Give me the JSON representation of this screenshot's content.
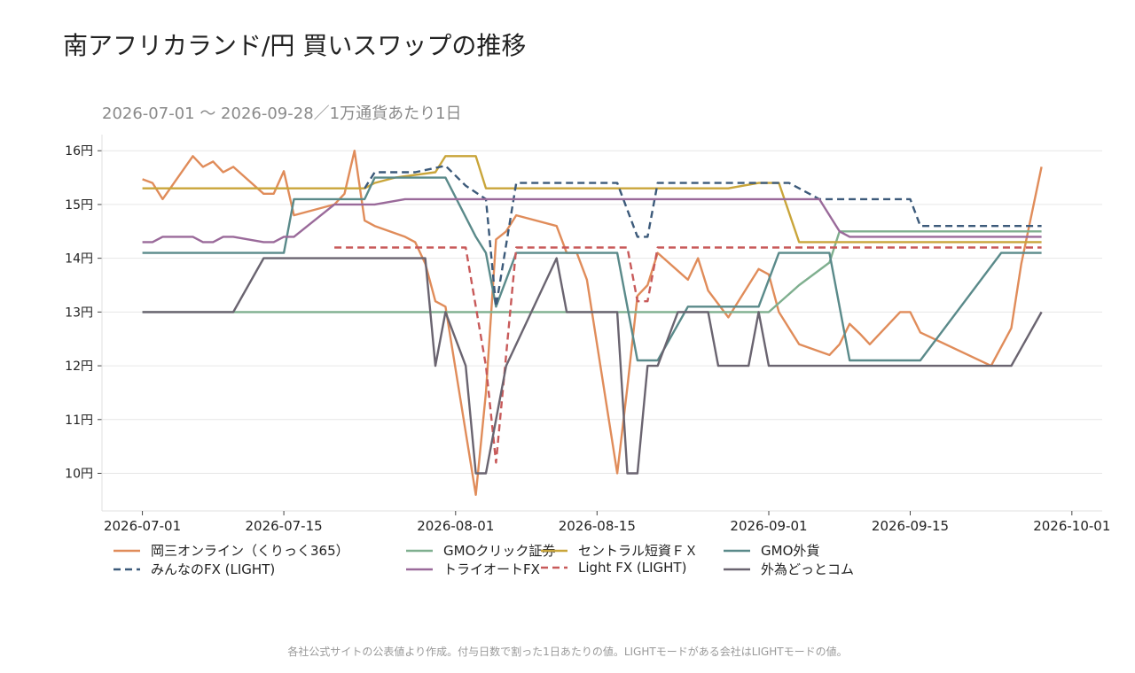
{
  "title": "南アフリカランド/円 買いスワップの推移",
  "subtitle": "2026-07-01 〜 2026-09-28／1万通貨あたり1日",
  "footnote": "各社公式サイトの公表値より作成。付与日数で割った1日あたりの値。LIGHTモードがある会社はLIGHTモードの値。",
  "chart_data": {
    "type": "line",
    "x_ticks": [
      "2026-07-01",
      "2026-07-15",
      "2026-08-01",
      "2026-08-15",
      "2026-09-01",
      "2026-09-15",
      "2026-10-01"
    ],
    "y_ticks": [
      "10円",
      "11円",
      "12円",
      "13円",
      "14円",
      "15円",
      "16円"
    ],
    "ylim": [
      9.3,
      16.3
    ],
    "xlim": [
      "2026-06-27",
      "2026-10-04"
    ],
    "grid": true,
    "legend_position": "bottom",
    "series": [
      {
        "name": "岡三オンライン（くりっく365）",
        "color": "#E08C5A",
        "dash": false,
        "points": [
          [
            "2026-07-01",
            15.47
          ],
          [
            "2026-07-02",
            15.4
          ],
          [
            "2026-07-03",
            15.1
          ],
          [
            "2026-07-06",
            15.9
          ],
          [
            "2026-07-07",
            15.7
          ],
          [
            "2026-07-08",
            15.8
          ],
          [
            "2026-07-09",
            15.6
          ],
          [
            "2026-07-10",
            15.7
          ],
          [
            "2026-07-13",
            15.2
          ],
          [
            "2026-07-14",
            15.2
          ],
          [
            "2026-07-15",
            15.62
          ],
          [
            "2026-07-16",
            14.8
          ],
          [
            "2026-07-20",
            15.0
          ],
          [
            "2026-07-21",
            15.2
          ],
          [
            "2026-07-22",
            16.0
          ],
          [
            "2026-07-23",
            14.7
          ],
          [
            "2026-07-24",
            14.6
          ],
          [
            "2026-07-27",
            14.4
          ],
          [
            "2026-07-28",
            14.3
          ],
          [
            "2026-07-29",
            13.9
          ],
          [
            "2026-07-30",
            13.2
          ],
          [
            "2026-07-31",
            13.1
          ],
          [
            "2026-08-03",
            9.6
          ],
          [
            "2026-08-04",
            11.5
          ],
          [
            "2026-08-05",
            14.35
          ],
          [
            "2026-08-06",
            14.5
          ],
          [
            "2026-08-07",
            14.8
          ],
          [
            "2026-08-11",
            14.6
          ],
          [
            "2026-08-12",
            14.1
          ],
          [
            "2026-08-13",
            14.1
          ],
          [
            "2026-08-14",
            13.6
          ],
          [
            "2026-08-17",
            10.0
          ],
          [
            "2026-08-18",
            11.6
          ],
          [
            "2026-08-19",
            13.3
          ],
          [
            "2026-08-20",
            13.5
          ],
          [
            "2026-08-21",
            14.1
          ],
          [
            "2026-08-24",
            13.6
          ],
          [
            "2026-08-25",
            14.0
          ],
          [
            "2026-08-26",
            13.4
          ],
          [
            "2026-08-28",
            12.9
          ],
          [
            "2026-08-31",
            13.8
          ],
          [
            "2026-09-01",
            13.7
          ],
          [
            "2026-09-02",
            13.0
          ],
          [
            "2026-09-04",
            12.4
          ],
          [
            "2026-09-07",
            12.2
          ],
          [
            "2026-09-08",
            12.4
          ],
          [
            "2026-09-09",
            12.78
          ],
          [
            "2026-09-10",
            12.6
          ],
          [
            "2026-09-11",
            12.4
          ],
          [
            "2026-09-14",
            13.0
          ],
          [
            "2026-09-15",
            13.0
          ],
          [
            "2026-09-16",
            12.62
          ],
          [
            "2026-09-23",
            12.0
          ],
          [
            "2026-09-25",
            12.7
          ],
          [
            "2026-09-26",
            13.9
          ],
          [
            "2026-09-28",
            15.7
          ]
        ]
      },
      {
        "name": "GMOクリック証券",
        "color": "#7FAF8F",
        "dash": false,
        "points": [
          [
            "2026-07-01",
            13.0
          ],
          [
            "2026-09-01",
            13.0
          ],
          [
            "2026-09-04",
            13.5
          ],
          [
            "2026-09-07",
            13.92
          ],
          [
            "2026-09-08",
            14.5
          ],
          [
            "2026-09-28",
            14.5
          ]
        ]
      },
      {
        "name": "セントラル短資ＦＸ",
        "color": "#C9A53A",
        "dash": false,
        "points": [
          [
            "2026-07-01",
            15.3
          ],
          [
            "2026-07-23",
            15.3
          ],
          [
            "2026-07-24",
            15.4
          ],
          [
            "2026-07-26",
            15.5
          ],
          [
            "2026-07-30",
            15.6
          ],
          [
            "2026-07-31",
            15.9
          ],
          [
            "2026-08-03",
            15.9
          ],
          [
            "2026-08-04",
            15.3
          ],
          [
            "2026-08-28",
            15.3
          ],
          [
            "2026-08-31",
            15.4
          ],
          [
            "2026-09-02",
            15.4
          ],
          [
            "2026-09-04",
            14.3
          ],
          [
            "2026-09-28",
            14.3
          ]
        ]
      },
      {
        "name": "GMO外貨",
        "color": "#5A8A8A",
        "dash": false,
        "points": [
          [
            "2026-07-01",
            14.1
          ],
          [
            "2026-07-15",
            14.1
          ],
          [
            "2026-07-16",
            15.1
          ],
          [
            "2026-07-23",
            15.1
          ],
          [
            "2026-07-24",
            15.5
          ],
          [
            "2026-07-31",
            15.5
          ],
          [
            "2026-08-03",
            14.4
          ],
          [
            "2026-08-04",
            14.1
          ],
          [
            "2026-08-05",
            13.1
          ],
          [
            "2026-08-07",
            14.1
          ],
          [
            "2026-08-17",
            14.1
          ],
          [
            "2026-08-19",
            12.1
          ],
          [
            "2026-08-21",
            12.1
          ],
          [
            "2026-08-24",
            13.1
          ],
          [
            "2026-08-31",
            13.1
          ],
          [
            "2026-09-02",
            14.1
          ],
          [
            "2026-09-07",
            14.1
          ],
          [
            "2026-09-09",
            12.1
          ],
          [
            "2026-09-16",
            12.1
          ],
          [
            "2026-09-24",
            14.1
          ],
          [
            "2026-09-28",
            14.1
          ]
        ]
      },
      {
        "name": "みんなのFX (LIGHT)",
        "color": "#3C5A7A",
        "dash": true,
        "points": [
          [
            "2026-07-23",
            15.3
          ],
          [
            "2026-07-24",
            15.6
          ],
          [
            "2026-07-28",
            15.6
          ],
          [
            "2026-07-31",
            15.72
          ],
          [
            "2026-08-02",
            15.35
          ],
          [
            "2026-08-04",
            15.1
          ],
          [
            "2026-08-05",
            13.1
          ],
          [
            "2026-08-07",
            15.4
          ],
          [
            "2026-08-17",
            15.4
          ],
          [
            "2026-08-19",
            14.4
          ],
          [
            "2026-08-20",
            14.4
          ],
          [
            "2026-08-21",
            15.4
          ],
          [
            "2026-09-03",
            15.4
          ],
          [
            "2026-09-06",
            15.1
          ],
          [
            "2026-09-15",
            15.1
          ],
          [
            "2026-09-16",
            14.6
          ],
          [
            "2026-09-28",
            14.6
          ]
        ]
      },
      {
        "name": "トライオートFX",
        "color": "#9A6A9A",
        "dash": false,
        "points": [
          [
            "2026-07-01",
            14.3
          ],
          [
            "2026-07-02",
            14.3
          ],
          [
            "2026-07-03",
            14.4
          ],
          [
            "2026-07-06",
            14.4
          ],
          [
            "2026-07-07",
            14.3
          ],
          [
            "2026-07-08",
            14.3
          ],
          [
            "2026-07-09",
            14.4
          ],
          [
            "2026-07-10",
            14.4
          ],
          [
            "2026-07-13",
            14.3
          ],
          [
            "2026-07-14",
            14.3
          ],
          [
            "2026-07-15",
            14.4
          ],
          [
            "2026-07-16",
            14.4
          ],
          [
            "2026-07-20",
            15.0
          ],
          [
            "2026-07-24",
            15.0
          ],
          [
            "2026-07-27",
            15.1
          ],
          [
            "2026-09-06",
            15.1
          ],
          [
            "2026-09-08",
            14.5
          ],
          [
            "2026-09-09",
            14.4
          ],
          [
            "2026-09-28",
            14.4
          ]
        ]
      },
      {
        "name": "Light FX (LIGHT)",
        "color": "#C85A5A",
        "dash": true,
        "points": [
          [
            "2026-07-20",
            14.2
          ],
          [
            "2026-08-02",
            14.2
          ],
          [
            "2026-08-04",
            12.0
          ],
          [
            "2026-08-05",
            10.2
          ],
          [
            "2026-08-07",
            14.2
          ],
          [
            "2026-08-18",
            14.2
          ],
          [
            "2026-08-19",
            13.2
          ],
          [
            "2026-08-20",
            13.2
          ],
          [
            "2026-08-21",
            14.2
          ],
          [
            "2026-09-28",
            14.2
          ]
        ]
      },
      {
        "name": "外為どっとコム",
        "color": "#6A6470",
        "dash": false,
        "points": [
          [
            "2026-07-01",
            13.0
          ],
          [
            "2026-07-10",
            13.0
          ],
          [
            "2026-07-13",
            14.0
          ],
          [
            "2026-07-29",
            14.0
          ],
          [
            "2026-07-30",
            12.0
          ],
          [
            "2026-07-31",
            13.0
          ],
          [
            "2026-08-02",
            12.0
          ],
          [
            "2026-08-03",
            10.0
          ],
          [
            "2026-08-04",
            10.0
          ],
          [
            "2026-08-06",
            12.0
          ],
          [
            "2026-08-11",
            14.0
          ],
          [
            "2026-08-12",
            13.0
          ],
          [
            "2026-08-17",
            13.0
          ],
          [
            "2026-08-18",
            10.0
          ],
          [
            "2026-08-19",
            10.0
          ],
          [
            "2026-08-20",
            12.0
          ],
          [
            "2026-08-21",
            12.0
          ],
          [
            "2026-08-23",
            13.0
          ],
          [
            "2026-08-26",
            13.0
          ],
          [
            "2026-08-27",
            12.0
          ],
          [
            "2026-08-30",
            12.0
          ],
          [
            "2026-08-31",
            13.0
          ],
          [
            "2026-09-01",
            12.0
          ],
          [
            "2026-09-25",
            12.0
          ],
          [
            "2026-09-28",
            13.0
          ]
        ]
      }
    ]
  }
}
